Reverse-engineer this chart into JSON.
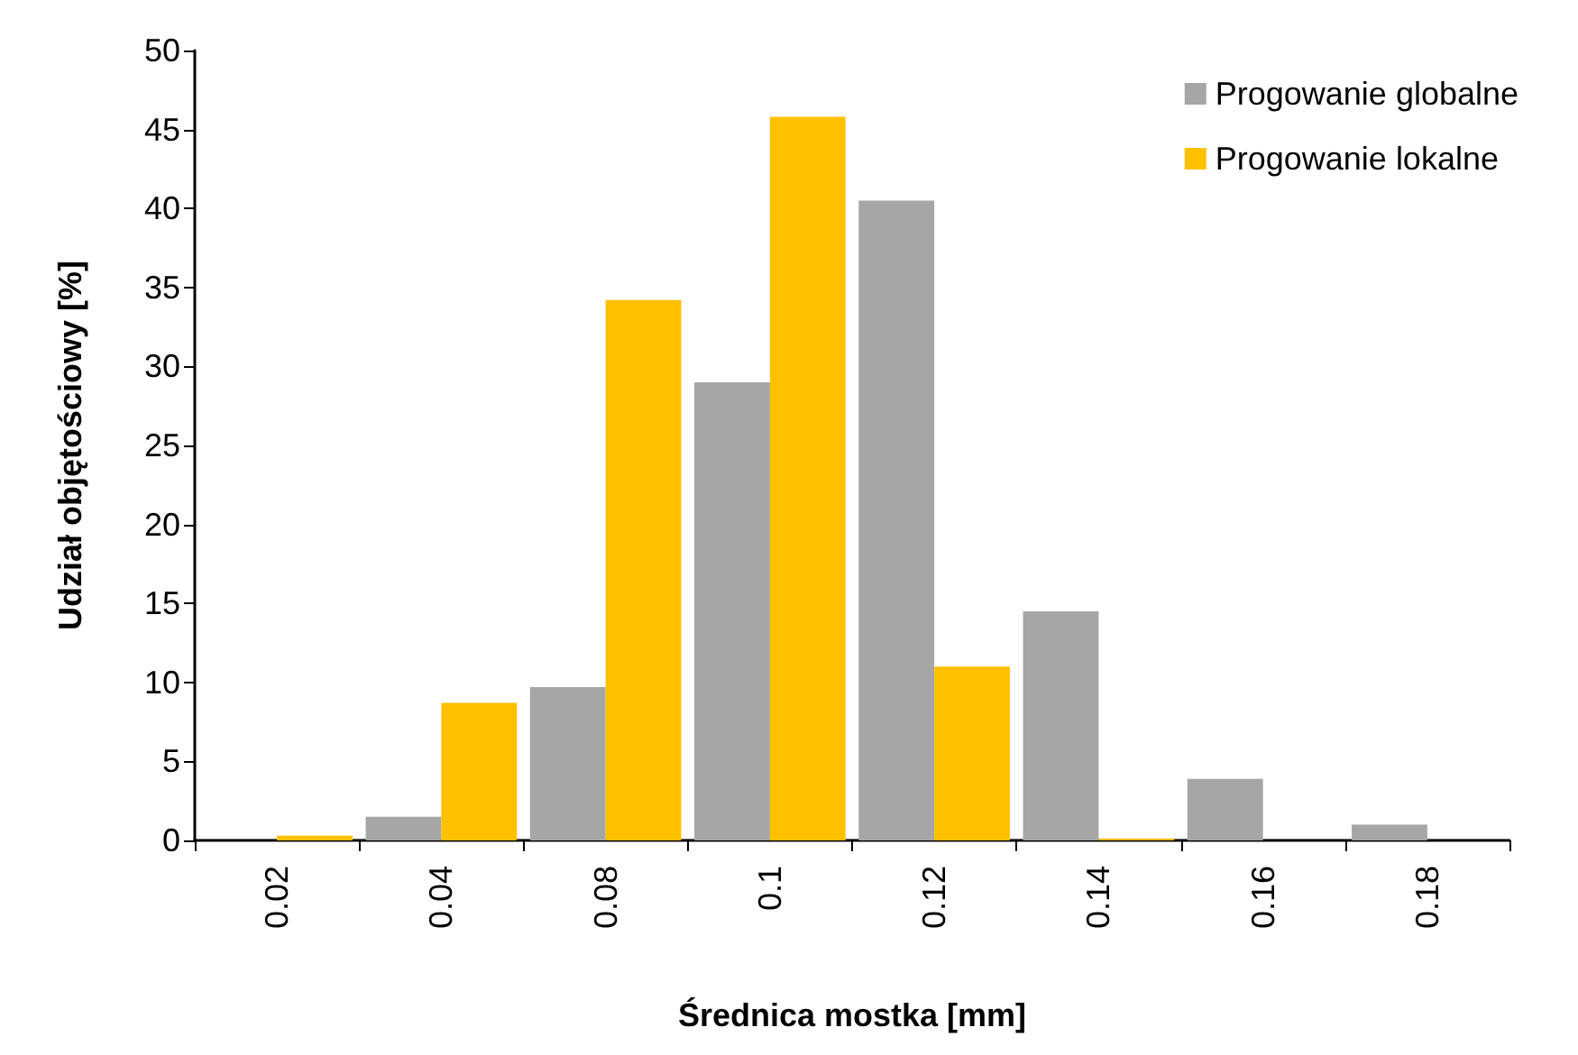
{
  "chart_data": {
    "type": "bar",
    "xlabel": "Średnica mostka [mm]",
    "ylabel": "Udział objętościowy [%]",
    "categories": [
      "0.02",
      "0.04",
      "0.08",
      "0.1",
      "0.12",
      "0.14",
      "0.16",
      "0.18"
    ],
    "series": [
      {
        "name": "Progowanie globalne",
        "color": "#a6a6a6",
        "values": [
          0,
          1.5,
          9.7,
          29,
          40.5,
          14.5,
          3.9,
          1.0
        ]
      },
      {
        "name": "Progowanie lokalne",
        "color": "#ffc000",
        "values": [
          0.3,
          8.7,
          34.2,
          45.8,
          11,
          0.1,
          0,
          0
        ]
      }
    ],
    "ylim": [
      0,
      50
    ],
    "yticks": [
      0,
      5,
      10,
      15,
      20,
      25,
      30,
      35,
      40,
      45,
      50
    ],
    "grid": false,
    "legend": "top right"
  }
}
